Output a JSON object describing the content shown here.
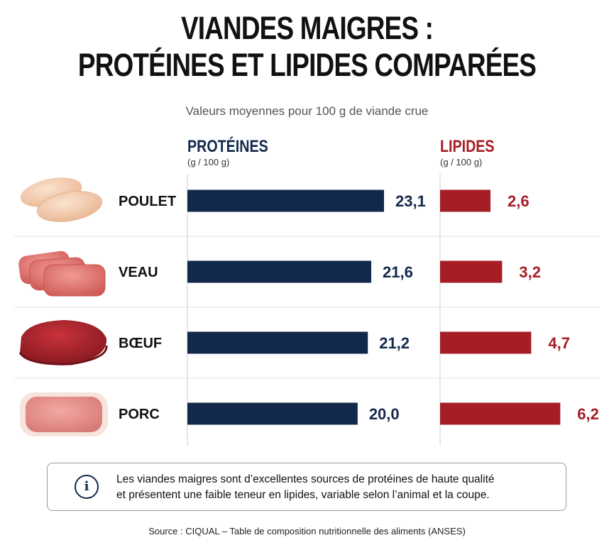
{
  "title": {
    "line1": "VIANDES MAIGRES :",
    "line2": "PROTÉINES ET LIPIDES COMPARÉES"
  },
  "subtitle": "Valeurs moyennes pour 100 g de viande crue",
  "columns": {
    "proteins": {
      "name": "PROTÉINES",
      "unit": "(g / 100 g)",
      "color": "#13294b"
    },
    "lipids": {
      "name": "LIPIDES",
      "unit": "(g / 100 g)",
      "color": "#a51d25"
    }
  },
  "chart_data": {
    "type": "bar",
    "orientation": "horizontal",
    "categories": [
      "POULET",
      "VEAU",
      "BŒUF",
      "PORC"
    ],
    "category_images": [
      "chicken-breast-image",
      "veal-cutlet-image",
      "beef-steak-image",
      "pork-chop-image"
    ],
    "series": [
      {
        "name": "PROTÉINES",
        "values": [
          23.1,
          21.6,
          21.2,
          20.0
        ],
        "labels": [
          "23,1",
          "21,6",
          "21,2",
          "20,0"
        ],
        "color": "#13294b"
      },
      {
        "name": "LIPIDES",
        "values": [
          2.6,
          3.2,
          4.7,
          6.2
        ],
        "labels": [
          "2,6",
          "3,2",
          "4,7",
          "6,2"
        ],
        "color": "#a51d25"
      }
    ],
    "grid": false
  },
  "note": {
    "icon": "info-icon",
    "line1": "Les viandes maigres sont d’excellentes sources de protéines de haute qualité",
    "line2": "et présentent une faible teneur en lipides, variable selon l’animal et la coupe."
  },
  "source": "Source : CIQUAL – Table de composition nutritionnelle des aliments (ANSES)"
}
